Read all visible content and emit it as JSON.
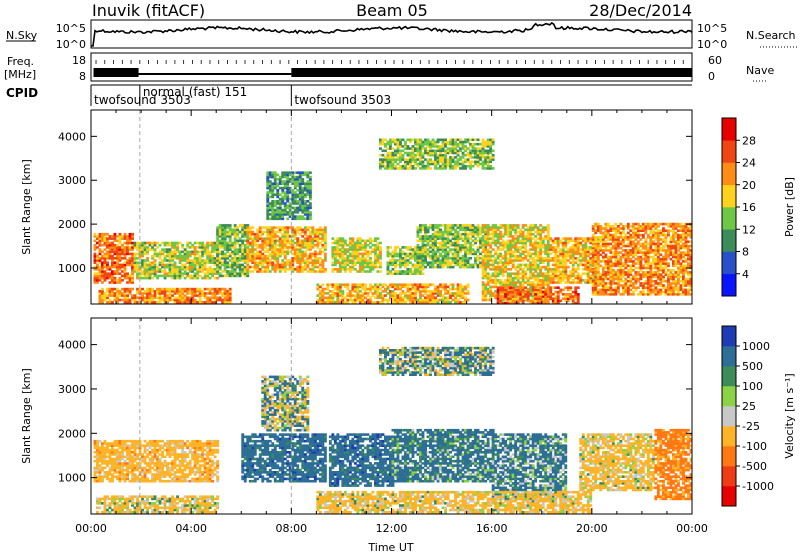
{
  "header": {
    "station": "Inuvik (fitACF)",
    "beam": "Beam 05",
    "date": "28/Dec/2014"
  },
  "noise_panel": {
    "left_label": "N.Sky",
    "right_label": "N.Search",
    "left_ticks": [
      "10^5",
      "10^0"
    ],
    "right_ticks": [
      "10^5",
      "10^0"
    ]
  },
  "freq_panel": {
    "left_label_1": "Freq.",
    "left_label_2": "[MHz]",
    "right_label": "Nave",
    "left_ticks": [
      "18",
      "8"
    ],
    "right_ticks": [
      "60",
      "0"
    ]
  },
  "cpid": {
    "label": "CPID",
    "segments": [
      {
        "start_hour": 0.0,
        "text": "twofsound 3503"
      },
      {
        "start_hour": 1.95,
        "text": "normal (fast) 151"
      },
      {
        "start_hour": 8.0,
        "text": "twofsound 3503"
      }
    ]
  },
  "chart_data": [
    {
      "type": "heatmap",
      "title": "",
      "xlabel": "Time UT",
      "ylabel": "Slant Range [km]",
      "x_ticks": [
        "00:00",
        "04:00",
        "08:00",
        "12:00",
        "16:00",
        "20:00",
        "00:00"
      ],
      "xlim_hours": [
        0,
        24
      ],
      "y_ticks": [
        "1000",
        "2000",
        "3000",
        "4000"
      ],
      "ylim": [
        180,
        4600
      ],
      "colorbar": {
        "label": "Power [dB]",
        "ticks": [
          "4",
          "8",
          "12",
          "16",
          "20",
          "24",
          "28"
        ],
        "range": [
          0,
          32
        ],
        "colors": [
          "#0a14ff",
          "#2850c8",
          "#3c8c5a",
          "#6ec846",
          "#ffd21e",
          "#ff8c14",
          "#f04614",
          "#e60000"
        ]
      },
      "echo_regions": [
        {
          "t0": 0.1,
          "t1": 1.7,
          "r0": 650,
          "r1": 1800,
          "level": 24
        },
        {
          "t0": 1.7,
          "t1": 5.0,
          "r0": 750,
          "r1": 1600,
          "level": 16
        },
        {
          "t0": 0.3,
          "t1": 5.5,
          "r0": 200,
          "r1": 520,
          "level": 22
        },
        {
          "t0": 5.0,
          "t1": 6.2,
          "r0": 800,
          "r1": 2000,
          "level": 14
        },
        {
          "t0": 6.2,
          "t1": 9.3,
          "r0": 900,
          "r1": 1950,
          "level": 20
        },
        {
          "t0": 7.0,
          "t1": 8.7,
          "r0": 2100,
          "r1": 3200,
          "level": 11
        },
        {
          "t0": 9.0,
          "t1": 15.0,
          "r0": 200,
          "r1": 650,
          "level": 20
        },
        {
          "t0": 9.6,
          "t1": 11.5,
          "r0": 900,
          "r1": 1700,
          "level": 17
        },
        {
          "t0": 11.8,
          "t1": 13.2,
          "r0": 850,
          "r1": 1500,
          "level": 15
        },
        {
          "t0": 13.0,
          "t1": 15.8,
          "r0": 1000,
          "r1": 2000,
          "level": 14
        },
        {
          "t0": 15.6,
          "t1": 18.3,
          "r0": 250,
          "r1": 2000,
          "level": 18
        },
        {
          "t0": 18.3,
          "t1": 20.3,
          "r0": 650,
          "r1": 1700,
          "level": 20
        },
        {
          "t0": 20.0,
          "t1": 24.0,
          "r0": 380,
          "r1": 2000,
          "level": 22
        },
        {
          "t0": 11.5,
          "t1": 16.0,
          "r0": 3250,
          "r1": 3950,
          "level": 14
        },
        {
          "t0": 16.2,
          "t1": 19.5,
          "r0": 180,
          "r1": 560,
          "level": 24
        }
      ]
    },
    {
      "type": "heatmap",
      "title": "",
      "xlabel": "Time UT",
      "ylabel": "Slant Range [km]",
      "x_ticks": [
        "00:00",
        "04:00",
        "08:00",
        "12:00",
        "16:00",
        "20:00",
        "00:00"
      ],
      "xlim_hours": [
        0,
        24
      ],
      "y_ticks": [
        "1000",
        "2000",
        "3000",
        "4000"
      ],
      "ylim": [
        180,
        4600
      ],
      "colorbar": {
        "label": "Velocity [m s⁻¹]",
        "ticks": [
          "1000",
          "500",
          "100",
          "25",
          "-25",
          "-100",
          "-500",
          "-1000"
        ],
        "range": [
          -1000,
          1000
        ],
        "colors": [
          "#1e3cb4",
          "#2d6e96",
          "#3c8c5a",
          "#8cd246",
          "#c8c8c8",
          "#ffb428",
          "#ff7814",
          "#f03c14",
          "#e60000"
        ]
      },
      "echo_regions": [
        {
          "t0": 0.1,
          "t1": 5.0,
          "r0": 900,
          "r1": 1850,
          "level": -300
        },
        {
          "t0": 0.2,
          "t1": 5.0,
          "r0": 200,
          "r1": 600,
          "level": -150
        },
        {
          "t0": 6.0,
          "t1": 9.3,
          "r0": 900,
          "r1": 2000,
          "level": 300
        },
        {
          "t0": 6.8,
          "t1": 8.6,
          "r0": 2050,
          "r1": 3300,
          "level": 0
        },
        {
          "t0": 9.5,
          "t1": 12.0,
          "r0": 800,
          "r1": 2000,
          "level": 300
        },
        {
          "t0": 12.0,
          "t1": 16.0,
          "r0": 900,
          "r1": 2100,
          "level": 200
        },
        {
          "t0": 16.0,
          "t1": 19.0,
          "r0": 500,
          "r1": 2000,
          "level": 150
        },
        {
          "t0": 19.5,
          "t1": 22.5,
          "r0": 700,
          "r1": 2000,
          "level": -200
        },
        {
          "t0": 22.5,
          "t1": 24.0,
          "r0": 500,
          "r1": 2100,
          "level": -600
        },
        {
          "t0": 9.0,
          "t1": 20.0,
          "r0": 200,
          "r1": 700,
          "level": -200
        },
        {
          "t0": 11.5,
          "t1": 16.0,
          "r0": 3300,
          "r1": 3950,
          "level": 50
        }
      ]
    }
  ]
}
